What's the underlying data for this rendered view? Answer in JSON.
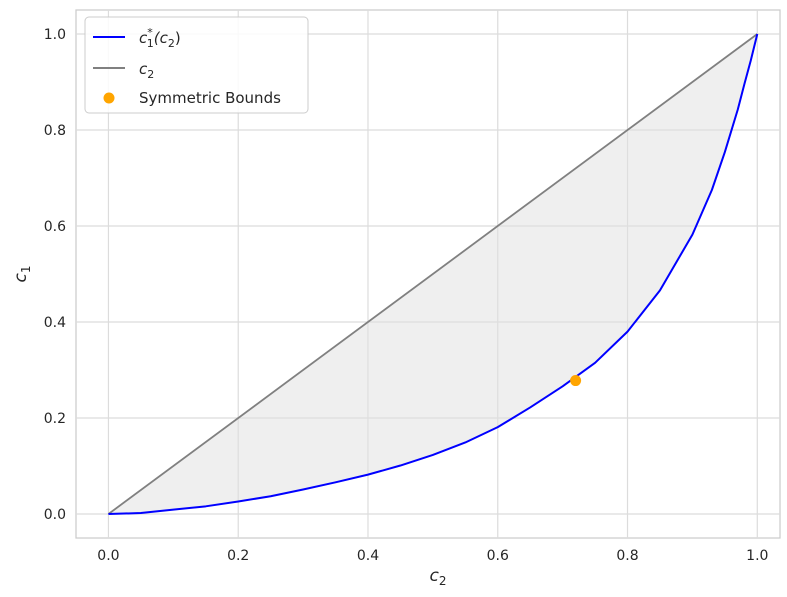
{
  "chart_data": {
    "type": "line",
    "title": "",
    "xlabel": {
      "base": "c",
      "sub": "2"
    },
    "ylabel": {
      "base": "c",
      "sub": "1"
    },
    "xlim": [
      -0.05,
      1.035
    ],
    "ylim": [
      -0.05,
      1.05
    ],
    "grid": true,
    "legend_position": "top-left",
    "x_ticks": [
      "0.0",
      "0.2",
      "0.4",
      "0.6",
      "0.8",
      "1.0"
    ],
    "y_ticks": [
      "0.0",
      "0.2",
      "0.4",
      "0.6",
      "0.8",
      "1.0"
    ],
    "x_tick_values": [
      0,
      0.2,
      0.4,
      0.6,
      0.8,
      1.0
    ],
    "y_tick_values": [
      0,
      0.2,
      0.4,
      0.6,
      0.8,
      1.0
    ],
    "series": [
      {
        "key": "curve",
        "legend": {
          "base": "c",
          "sup": "*",
          "sub": "1",
          "arg": "(c",
          "arg_sub": "2",
          "close": ")"
        },
        "color": "#0000ff",
        "x": [
          0.0,
          0.05,
          0.1,
          0.15,
          0.2,
          0.25,
          0.3,
          0.35,
          0.4,
          0.45,
          0.5,
          0.55,
          0.6,
          0.65,
          0.7,
          0.75,
          0.8,
          0.85,
          0.9,
          0.93,
          0.95,
          0.97,
          0.98,
          0.99,
          1.0
        ],
        "y": [
          0.0,
          0.002,
          0.009,
          0.016,
          0.026,
          0.037,
          0.051,
          0.066,
          0.082,
          0.101,
          0.123,
          0.149,
          0.181,
          0.222,
          0.266,
          0.315,
          0.38,
          0.466,
          0.582,
          0.675,
          0.754,
          0.843,
          0.895,
          0.945,
          1.0
        ]
      },
      {
        "key": "diagonal",
        "legend": {
          "base": "c",
          "sub": "2"
        },
        "color": "#808080",
        "x": [
          0.0,
          1.0
        ],
        "y": [
          0.0,
          1.0
        ]
      }
    ],
    "points": {
      "legend": "Symmetric Bounds",
      "color": "#ffa500",
      "x": [
        0.72
      ],
      "y": [
        0.278
      ]
    },
    "fill_between": {
      "color": "#e0e0e0",
      "lower": "curve",
      "upper": "diagonal"
    }
  }
}
